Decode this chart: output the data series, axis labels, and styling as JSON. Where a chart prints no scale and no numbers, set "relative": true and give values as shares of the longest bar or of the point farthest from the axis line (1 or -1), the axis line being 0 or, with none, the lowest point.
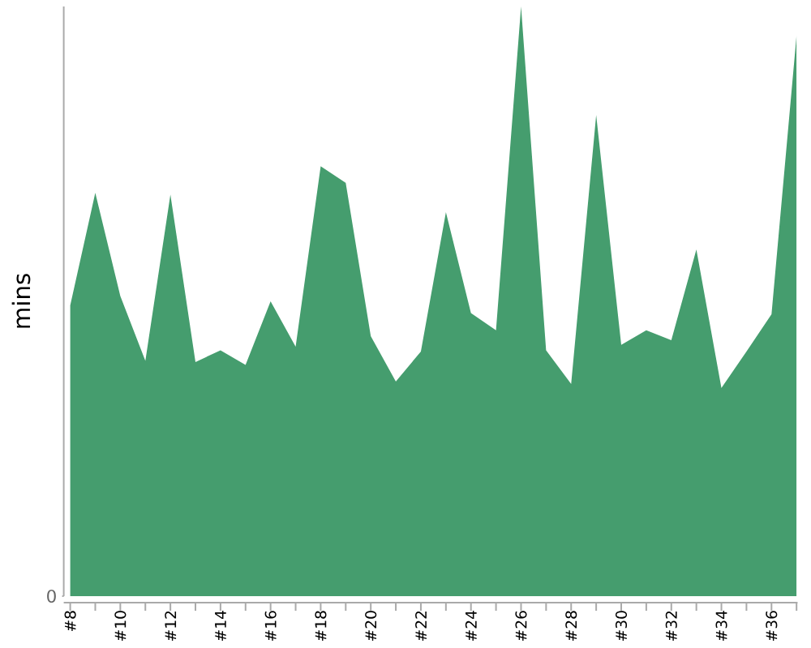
{
  "chart_data": {
    "type": "area",
    "ylabel": "mins",
    "categories": [
      "#8",
      null,
      "#10",
      null,
      "#12",
      null,
      "#14",
      null,
      "#16",
      null,
      "#18",
      null,
      "#20",
      null,
      "#22",
      null,
      "#24",
      null,
      "#26",
      null,
      "#28",
      null,
      "#30",
      null,
      "#32",
      null,
      "#34",
      null,
      "#36",
      null
    ],
    "values": [
      0.493,
      0.684,
      0.509,
      0.399,
      0.681,
      0.397,
      0.417,
      0.392,
      0.5,
      0.423,
      0.729,
      0.701,
      0.441,
      0.364,
      0.415,
      0.651,
      0.48,
      0.451,
      1,
      0.417,
      0.36,
      0.816,
      0.426,
      0.451,
      0.434,
      0.588,
      0.353,
      0.415,
      0.478,
      0.951
    ],
    "color": "#459d6e",
    "relative": true,
    "annotations": [
      "0"
    ]
  }
}
